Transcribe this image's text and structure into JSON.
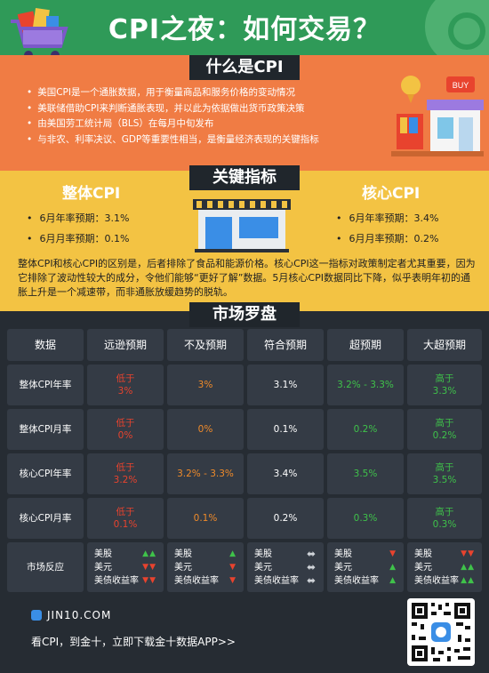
{
  "header": {
    "title": "CPI之夜：如何交易？"
  },
  "section1": {
    "label": "什么是CPI",
    "bullets": [
      "美国CPI是一个通胀数据，用于衡量商品和服务价格的变动情况",
      "美联储借助CPI来判断通胀表现，并以此为依据做出货币政策决策",
      "由美国劳工统计局（BLS）在每月中旬发布",
      "与非农、利率决议、GDP等重要性相当，是衡量经济表现的关键指标"
    ]
  },
  "section2": {
    "label": "关键指标",
    "left": {
      "title": "整体CPI",
      "yoy": "6月年率预期：3.1%",
      "mom": "6月月率预期：0.1%"
    },
    "right": {
      "title": "核心CPI",
      "yoy": "6月年率预期：3.4%",
      "mom": "6月月率预期：0.2%"
    },
    "paragraph": "整体CPI和核心CPI的区别是，后者排除了食品和能源价格。核心CPI这一指标对政策制定者尤其重要，因为它排除了波动性较大的成分，令他们能够“更好了解”数据。5月核心CPI数据同比下降，似乎表明年初的通胀上升是一个减速带，而非通胀放缓趋势的脱轨。"
  },
  "section3": {
    "label": "市场罗盘",
    "headers": [
      "数据",
      "远逊预期",
      "不及预期",
      "符合预期",
      "超预期",
      "大超预期"
    ],
    "rows": [
      {
        "label": "整体CPI年率",
        "c1a": "低于",
        "c1b": "3%",
        "c2": "3%",
        "c3": "3.1%",
        "c4": "3.2% - 3.3%",
        "c5a": "高于",
        "c5b": "3.3%"
      },
      {
        "label": "整体CPI月率",
        "c1a": "低于",
        "c1b": "0%",
        "c2": "0%",
        "c3": "0.1%",
        "c4": "0.2%",
        "c5a": "高于",
        "c5b": "0.2%"
      },
      {
        "label": "核心CPI年率",
        "c1a": "低于",
        "c1b": "3.2%",
        "c2": "3.2% - 3.3%",
        "c3": "3.4%",
        "c4": "3.5%",
        "c5a": "高于",
        "c5b": "3.5%"
      },
      {
        "label": "核心CPI月率",
        "c1a": "低于",
        "c1b": "0.1%",
        "c2": "0.1%",
        "c3": "0.2%",
        "c4": "0.3%",
        "c5a": "高于",
        "c5b": "0.3%"
      }
    ],
    "reaction": {
      "label": "市场反应",
      "assets": [
        "美股",
        "美元",
        "美债收益率"
      ]
    }
  },
  "footer": {
    "site": "JIN10.COM",
    "cta": "看CPI，到金十，立即下载金十数据APP>>"
  },
  "colors": {
    "green": "#2f9a58",
    "orange": "#f07c44",
    "yellow": "#f3c343",
    "dark": "#262c33",
    "red": "#e8432e",
    "up": "#3fc24a"
  },
  "icons": [
    "shopping-cart-icon",
    "storefront-icon",
    "shop-building-icon",
    "site-logo-icon",
    "qr-code-icon",
    "arrow-up-icon",
    "arrow-down-icon",
    "arrow-both-icon"
  ]
}
